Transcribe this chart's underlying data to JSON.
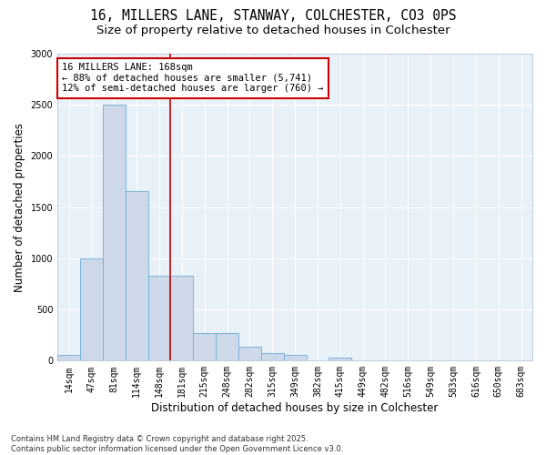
{
  "title_line1": "16, MILLERS LANE, STANWAY, COLCHESTER, CO3 0PS",
  "title_line2": "Size of property relative to detached houses in Colchester",
  "xlabel": "Distribution of detached houses by size in Colchester",
  "ylabel": "Number of detached properties",
  "categories": [
    "14sqm",
    "47sqm",
    "81sqm",
    "114sqm",
    "148sqm",
    "181sqm",
    "215sqm",
    "248sqm",
    "282sqm",
    "315sqm",
    "349sqm",
    "382sqm",
    "415sqm",
    "449sqm",
    "482sqm",
    "516sqm",
    "549sqm",
    "583sqm",
    "616sqm",
    "650sqm",
    "683sqm"
  ],
  "values": [
    60,
    1000,
    2500,
    1660,
    830,
    830,
    270,
    270,
    135,
    70,
    60,
    0,
    30,
    0,
    0,
    0,
    0,
    0,
    0,
    0,
    0
  ],
  "bar_color": "#cdd9e8",
  "bar_edge_color": "#6baed6",
  "vline_pos": 5,
  "vline_color": "#cc0000",
  "annotation_text": "16 MILLERS LANE: 168sqm\n← 88% of detached houses are smaller (5,741)\n12% of semi-detached houses are larger (760) →",
  "annotation_box_color": "#ffffff",
  "annotation_box_edge_color": "#cc0000",
  "ylim": [
    0,
    3000
  ],
  "yticks": [
    0,
    500,
    1000,
    1500,
    2000,
    2500,
    3000
  ],
  "bg_color": "#e8f0f8",
  "footnote": "Contains HM Land Registry data © Crown copyright and database right 2025.\nContains public sector information licensed under the Open Government Licence v3.0.",
  "title_fontsize": 10.5,
  "subtitle_fontsize": 9.5,
  "tick_fontsize": 7,
  "label_fontsize": 8.5,
  "annot_fontsize": 7.5
}
